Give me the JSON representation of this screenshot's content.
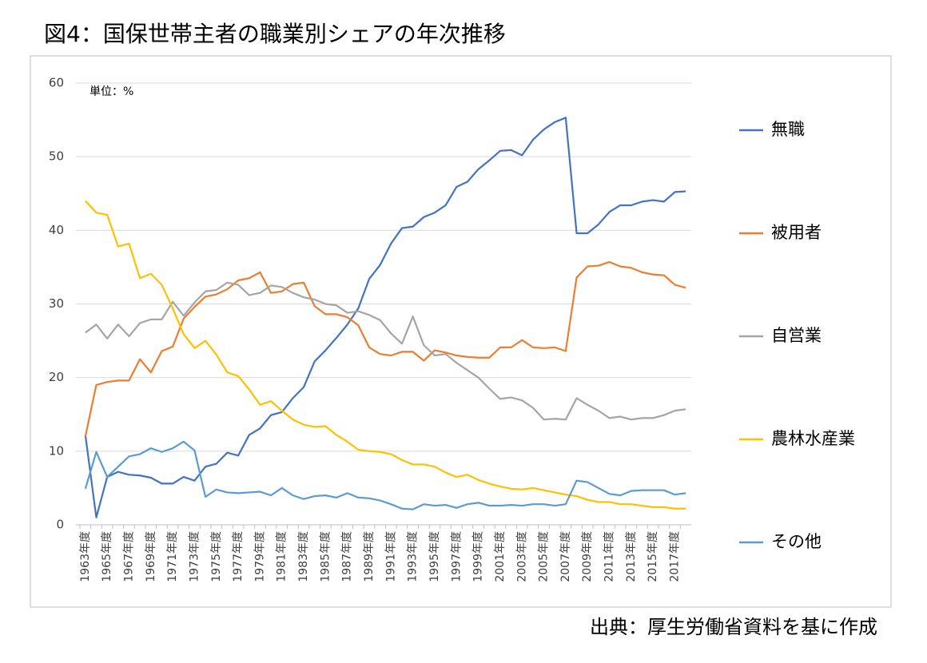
{
  "chart_data": {
    "type": "line",
    "title": "図4：国保世帯主者の職業別シェアの年次推移",
    "unit_note": "単位：%",
    "source": "出典：厚生労働省資料を基に作成",
    "legend": "right",
    "grid": true,
    "categories": [
      "1963年度",
      null,
      "1965年度",
      null,
      "1967年度",
      null,
      "1969年度",
      null,
      "1971年度",
      null,
      "1973年度",
      null,
      "1975年度",
      null,
      "1977年度",
      null,
      "1979年度",
      null,
      "1981年度",
      null,
      "1983年度",
      null,
      "1985年度",
      null,
      "1987年度",
      null,
      "1989年度",
      null,
      "1991年度",
      null,
      "1993年度",
      null,
      "1995年度",
      null,
      "1997年度",
      null,
      "1999年度",
      null,
      "2001年度",
      null,
      "2003年度",
      null,
      "2005年度",
      null,
      "2007年度",
      null,
      "2009年度",
      null,
      "2011年度",
      null,
      "2013年度",
      null,
      "2015年度",
      null,
      "2017年度",
      null
    ],
    "ylim": [
      0,
      60
    ],
    "yticks": [
      0,
      10,
      20,
      30,
      40,
      50,
      60
    ],
    "series": [
      {
        "name": "無職",
        "color": "#4472c4",
        "values": [
          12.2,
          1.0,
          6.5,
          7.2,
          6.8,
          6.7,
          6.4,
          5.6,
          5.6,
          6.5,
          6.0,
          7.9,
          8.3,
          9.8,
          9.4,
          12.2,
          13.1,
          14.9,
          15.3,
          17.2,
          18.7,
          22.2,
          23.7,
          25.4,
          27.2,
          29.4,
          33.4,
          35.3,
          38.2,
          40.3,
          40.5,
          41.8,
          42.4,
          43.4,
          45.9,
          46.6,
          48.3,
          49.5,
          50.8,
          50.9,
          50.2,
          52.3,
          53.7,
          54.7,
          55.3,
          39.6,
          39.6,
          40.8,
          42.5,
          43.4,
          43.4,
          43.9,
          44.1,
          43.9,
          45.2,
          45.3
        ]
      },
      {
        "name": "被用者",
        "color": "#ed7d31",
        "values": [
          12.0,
          19.0,
          19.4,
          19.6,
          19.6,
          22.5,
          20.7,
          23.6,
          24.2,
          28.0,
          29.6,
          31.0,
          31.3,
          32.0,
          33.2,
          33.5,
          34.3,
          31.5,
          31.7,
          32.7,
          32.9,
          29.7,
          28.6,
          28.6,
          28.2,
          27.1,
          24.1,
          23.2,
          23.0,
          23.5,
          23.5,
          22.3,
          23.7,
          23.4,
          23.0,
          22.8,
          22.7,
          22.7,
          24.1,
          24.1,
          25.1,
          24.1,
          24.0,
          24.1,
          23.6,
          33.6,
          35.1,
          35.2,
          35.7,
          35.1,
          34.9,
          34.3,
          34.0,
          33.9,
          32.6,
          32.2
        ]
      },
      {
        "name": "自営業",
        "color": "#a5a5a5",
        "values": [
          26.1,
          27.2,
          25.3,
          27.2,
          25.6,
          27.4,
          27.9,
          27.9,
          30.3,
          28.4,
          30.2,
          31.7,
          31.9,
          32.9,
          32.6,
          31.2,
          31.5,
          32.5,
          32.3,
          31.5,
          30.9,
          30.6,
          30.0,
          29.8,
          28.8,
          29.0,
          28.5,
          27.8,
          26.0,
          24.6,
          28.3,
          24.4,
          23.0,
          23.2,
          22.0,
          21.0,
          20.0,
          18.5,
          17.1,
          17.3,
          16.9,
          15.9,
          14.3,
          14.4,
          14.3,
          17.2,
          16.3,
          15.5,
          14.5,
          14.7,
          14.3,
          14.5,
          14.5,
          14.9,
          15.5,
          15.7
        ]
      },
      {
        "name": "農林水産業",
        "color": "#ffc000",
        "values": [
          44.0,
          42.4,
          42.1,
          37.8,
          38.2,
          33.5,
          34.1,
          32.6,
          29.4,
          25.9,
          24.0,
          25.0,
          23.1,
          20.7,
          20.2,
          18.4,
          16.3,
          16.8,
          15.5,
          14.3,
          13.6,
          13.3,
          13.4,
          12.2,
          11.3,
          10.2,
          10.0,
          9.9,
          9.6,
          8.8,
          8.2,
          8.2,
          7.9,
          7.1,
          6.5,
          6.8,
          6.1,
          5.6,
          5.2,
          4.9,
          4.8,
          5.0,
          4.7,
          4.4,
          4.1,
          3.9,
          3.4,
          3.1,
          3.1,
          2.8,
          2.8,
          2.6,
          2.4,
          2.4,
          2.2,
          2.2
        ]
      },
      {
        "name": "その他",
        "color": "#5b9bd5",
        "values": [
          4.9,
          9.9,
          6.5,
          7.9,
          9.3,
          9.6,
          10.4,
          9.9,
          10.4,
          11.3,
          10.1,
          3.8,
          4.8,
          4.4,
          4.3,
          4.4,
          4.5,
          4.0,
          5.0,
          4.0,
          3.5,
          3.9,
          4.0,
          3.7,
          4.3,
          3.7,
          3.6,
          3.3,
          2.8,
          2.2,
          2.1,
          2.8,
          2.6,
          2.7,
          2.3,
          2.8,
          3.0,
          2.6,
          2.6,
          2.7,
          2.6,
          2.8,
          2.8,
          2.6,
          2.8,
          6.0,
          5.8,
          5.0,
          4.2,
          4.0,
          4.6,
          4.7,
          4.7,
          4.7,
          4.1,
          4.3
        ]
      }
    ]
  }
}
